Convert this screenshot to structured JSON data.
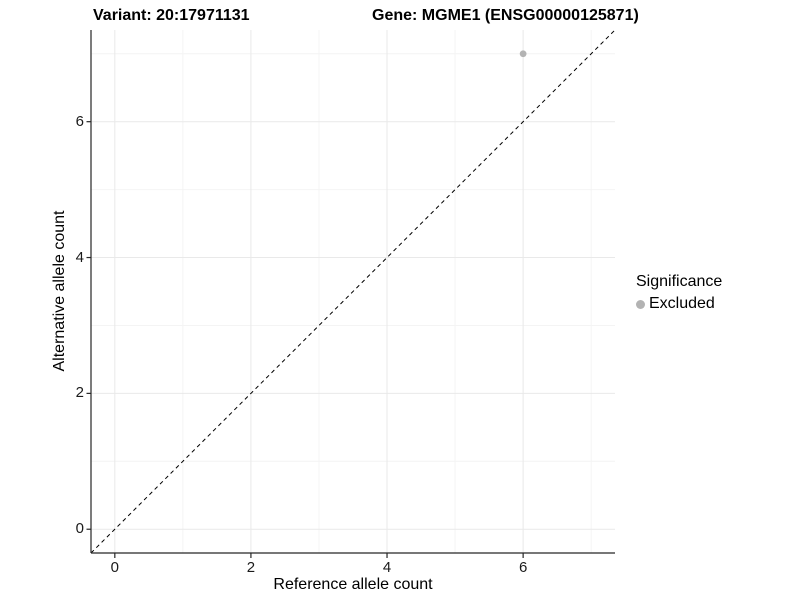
{
  "titles": {
    "left": "Variant: 20:17971131",
    "right": "Gene: MGME1 (ENSG00000125871)"
  },
  "chart_data": {
    "type": "scatter",
    "xlabel": "Reference allele count",
    "ylabel": "Alternative allele count",
    "xlim": [
      -0.35,
      7.35
    ],
    "ylim": [
      -0.35,
      7.35
    ],
    "x_ticks": [
      0,
      2,
      4,
      6
    ],
    "y_ticks": [
      0,
      2,
      4,
      6
    ],
    "x_minor_ticks": [
      1,
      3,
      5,
      7
    ],
    "y_minor_ticks": [
      1,
      3,
      5,
      7
    ],
    "grid": true,
    "abline": {
      "slope": 1,
      "intercept": 0,
      "style": "dashed",
      "color": "#000000"
    },
    "series": [
      {
        "name": "Excluded",
        "color": "#b3b3b3",
        "points": [
          {
            "x": 6,
            "y": 7
          }
        ]
      }
    ],
    "legend": {
      "title": "Significance",
      "position": "right",
      "entries": [
        {
          "label": "Excluded",
          "color": "#b3b3b3"
        }
      ]
    },
    "style": {
      "grid_major_color": "#e9e9e9",
      "grid_minor_color": "#f4f4f4",
      "axis_line_color": "#262626",
      "background": "#ffffff"
    }
  }
}
